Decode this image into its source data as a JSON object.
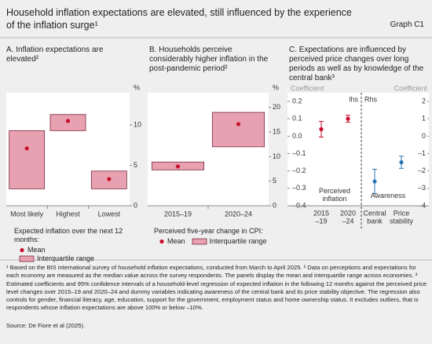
{
  "header": {
    "title": "Household inflation expectations are elevated, still influenced by the experience of the inflation surge¹",
    "graph": "Graph C1"
  },
  "chart_data": [
    {
      "type": "interval",
      "title": "A. Inflation expectations are elevated²",
      "unit": "%",
      "categories": [
        "Most likely",
        "Highest",
        "Lowest"
      ],
      "ylim": [
        0,
        14
      ],
      "yticks": [
        0,
        5,
        10
      ],
      "legend_title": "Expected inflation over the next 12 months:",
      "series": [
        {
          "name": "Mean",
          "color": "#c8102e",
          "values": [
            7.1,
            10.5,
            3.3
          ]
        },
        {
          "name": "Interquartile range",
          "color": "#e7a1b0",
          "low": [
            2.1,
            9.3,
            2.1
          ],
          "high": [
            9.3,
            11.3,
            4.3
          ]
        }
      ]
    },
    {
      "type": "interval",
      "title": "B. Households perceive considerably higher inflation in the post-pandemic period²",
      "unit": "%",
      "categories": [
        "2015–19",
        "2020–24"
      ],
      "ylim": [
        0,
        23
      ],
      "yticks": [
        0,
        5,
        10,
        15,
        20
      ],
      "legend_title": "Perceived five-year change in CPI:",
      "series": [
        {
          "name": "Mean",
          "color": "#c8102e",
          "values": [
            8.0,
            16.6
          ]
        },
        {
          "name": "Interquartile range",
          "color": "#e7a1b0",
          "low": [
            7.3,
            12.0
          ],
          "high": [
            8.9,
            19.0
          ]
        }
      ]
    },
    {
      "type": "errorbar",
      "title": "C. Expectations are influenced by perceived price changes over long periods as well as by knowledge of the central bank³",
      "ylabel": "Coefficient",
      "y2label": "Coefficient",
      "axis_notes": [
        "lhs",
        "Rhs"
      ],
      "categories": [
        [
          "2015",
          "–19"
        ],
        [
          "2020",
          "–24"
        ],
        [
          "Central",
          "bank"
        ],
        [
          "Price",
          "stability"
        ]
      ],
      "ylim": [
        -0.4,
        0.25
      ],
      "yticks": [
        0.2,
        0.1,
        {
          "value": 0,
          "label": "0.0"
        },
        {
          "value": -0.1,
          "label": "–0.1"
        },
        {
          "value": -0.2,
          "label": "–0.2"
        },
        {
          "value": -0.3,
          "label": "–0.3"
        },
        {
          "value": -0.4,
          "label": "–0.4"
        }
      ],
      "y2lim": [
        -4,
        2.5
      ],
      "y2ticks": [
        2,
        1,
        0,
        {
          "value": -1,
          "label": "–1"
        },
        {
          "value": -2,
          "label": "–2"
        },
        {
          "value": -3,
          "label": "–3"
        },
        {
          "value": -4,
          "label": "–4"
        }
      ],
      "series": [
        {
          "name": "Perceived inflation",
          "color": "#c8102e",
          "values": [
            0.04,
            0.1,
            null,
            null
          ],
          "errors": [
            0.045,
            0.02,
            null,
            null
          ]
        },
        {
          "name": "Awareness",
          "color": "#2e75b6",
          "axis": "y2",
          "values": [
            null,
            null,
            -2.6,
            -1.5
          ],
          "errors": [
            null,
            null,
            0.7,
            0.35
          ]
        }
      ]
    }
  ],
  "footnote": "¹ Based on the BIS international survey of household inflation expectations, conducted from March to April 2025. ² Data on perceptions and expectations for each economy are measured as the median value across the survey respondents. The panels display the mean and interquartile range across economies. ³ Estimated coefficients and 95% confidence intervals of a household-level regression of expected inflation in the following 12 months against the perceived price level changes over 2015–19 and 2020–24 and dummy variables indicating awareness of the central bank and its price stability objective. The regression also controls for gender, financial literacy, age, education, support for the government, employment status and home ownership status. It excludes outliers, that is respondents whose inflation expectations are above 100% or below –10%.",
  "source": "Source: De Fiore et al (2025)."
}
